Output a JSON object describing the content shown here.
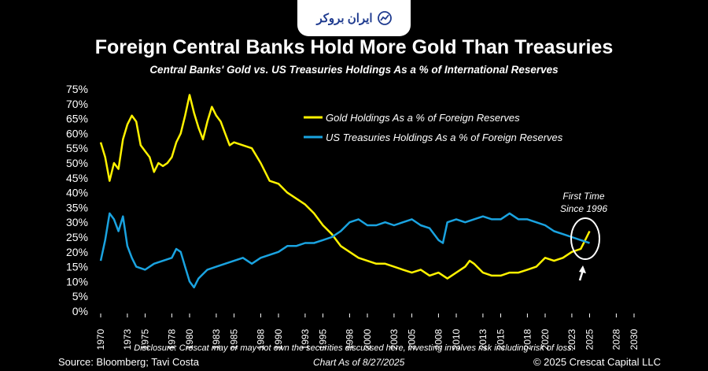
{
  "badge": {
    "text": "ایران بروکر",
    "icon": "trend-chart-icon"
  },
  "chart_data": {
    "type": "line",
    "title": "Foreign Central Banks Hold More Gold Than Treasuries",
    "subtitle": "Central Banks' Gold vs. US Treasuries Holdings As a % of International Reserves",
    "ylim": [
      0,
      75
    ],
    "yticks": [
      "0%",
      "5%",
      "10%",
      "15%",
      "20%",
      "25%",
      "30%",
      "35%",
      "40%",
      "45%",
      "50%",
      "55%",
      "60%",
      "65%",
      "70%",
      "75%"
    ],
    "xlim": [
      1970,
      2030
    ],
    "xticks": [
      "1970",
      "1973",
      "1975",
      "1978",
      "1980",
      "1983",
      "1985",
      "1988",
      "1990",
      "1993",
      "1995",
      "1998",
      "2000",
      "2003",
      "2005",
      "2008",
      "2010",
      "2013",
      "2015",
      "2018",
      "2020",
      "2023",
      "2025",
      "2028",
      "2030"
    ],
    "series": [
      {
        "name": "Gold Holdings As a % of Foreign Reserves",
        "color": "#fff200",
        "x": [
          1970,
          1970.5,
          1971,
          1971.5,
          1972,
          1972.5,
          1973,
          1973.5,
          1974,
          1974.5,
          1975,
          1975.5,
          1976,
          1976.5,
          1977,
          1977.5,
          1978,
          1978.5,
          1979,
          1979.5,
          1980,
          1980.5,
          1981,
          1981.5,
          1982,
          1982.5,
          1983,
          1983.5,
          1984,
          1984.5,
          1985,
          1986,
          1987,
          1988,
          1989,
          1990,
          1991,
          1992,
          1993,
          1994,
          1995,
          1996,
          1997,
          1998,
          1999,
          2000,
          2001,
          2002,
          2003,
          2004,
          2005,
          2006,
          2007,
          2008,
          2009,
          2010,
          2011,
          2011.5,
          2012,
          2013,
          2014,
          2015,
          2016,
          2017,
          2018,
          2019,
          2020,
          2021,
          2022,
          2023,
          2024,
          2024.5,
          2025
        ],
        "y": [
          57,
          52,
          44,
          50,
          48,
          58,
          63,
          66,
          64,
          56,
          54,
          52,
          47,
          50,
          49,
          50,
          52,
          57,
          60,
          66,
          73,
          67,
          62,
          58,
          64,
          69,
          66,
          64,
          60,
          56,
          57,
          56,
          55,
          50,
          44,
          43,
          40,
          38,
          36,
          33,
          29,
          26,
          22,
          20,
          18,
          17,
          16,
          16,
          15,
          14,
          13,
          14,
          12,
          13,
          11,
          13,
          15,
          17,
          16,
          13,
          12,
          12,
          13,
          13,
          14,
          15,
          18,
          17,
          18,
          20,
          21,
          24,
          27
        ]
      },
      {
        "name": "US Treasuries Holdings As a % of Foreign Reserves",
        "color": "#1aa3e0",
        "x": [
          1970,
          1970.5,
          1971,
          1971.5,
          1972,
          1972.5,
          1973,
          1973.5,
          1974,
          1975,
          1976,
          1977,
          1978,
          1978.5,
          1979,
          1979.5,
          1980,
          1980.5,
          1981,
          1982,
          1983,
          1984,
          1985,
          1986,
          1987,
          1988,
          1989,
          1990,
          1991,
          1992,
          1993,
          1994,
          1995,
          1996,
          1997,
          1998,
          1999,
          2000,
          2001,
          2002,
          2003,
          2004,
          2005,
          2006,
          2007,
          2008,
          2008.5,
          2009,
          2010,
          2011,
          2012,
          2013,
          2014,
          2015,
          2016,
          2017,
          2018,
          2019,
          2020,
          2021,
          2022,
          2023,
          2024,
          2025
        ],
        "y": [
          17,
          24,
          33,
          31,
          27,
          32,
          22,
          18,
          15,
          14,
          16,
          17,
          18,
          21,
          20,
          15,
          10,
          8,
          11,
          14,
          15,
          16,
          17,
          18,
          16,
          18,
          19,
          20,
          22,
          22,
          23,
          23,
          24,
          25,
          27,
          30,
          31,
          29,
          29,
          30,
          29,
          30,
          31,
          29,
          28,
          24,
          23,
          30,
          31,
          30,
          31,
          32,
          31,
          31,
          33,
          31,
          31,
          30,
          29,
          27,
          26,
          25,
          24,
          23
        ]
      }
    ],
    "annotations": [
      "First Time",
      "Since 1996"
    ],
    "legend_position": "top-right"
  },
  "footer": {
    "disclosure": "Disclosure: Crescat may or may not own the securities discussed here, investing involves risk including risk of loss.",
    "source": "Source: Bloomberg; Tavi Costa",
    "as_of": "Chart As of 8/27/2025",
    "copyright": "© 2025 Crescat Capital LLC"
  }
}
